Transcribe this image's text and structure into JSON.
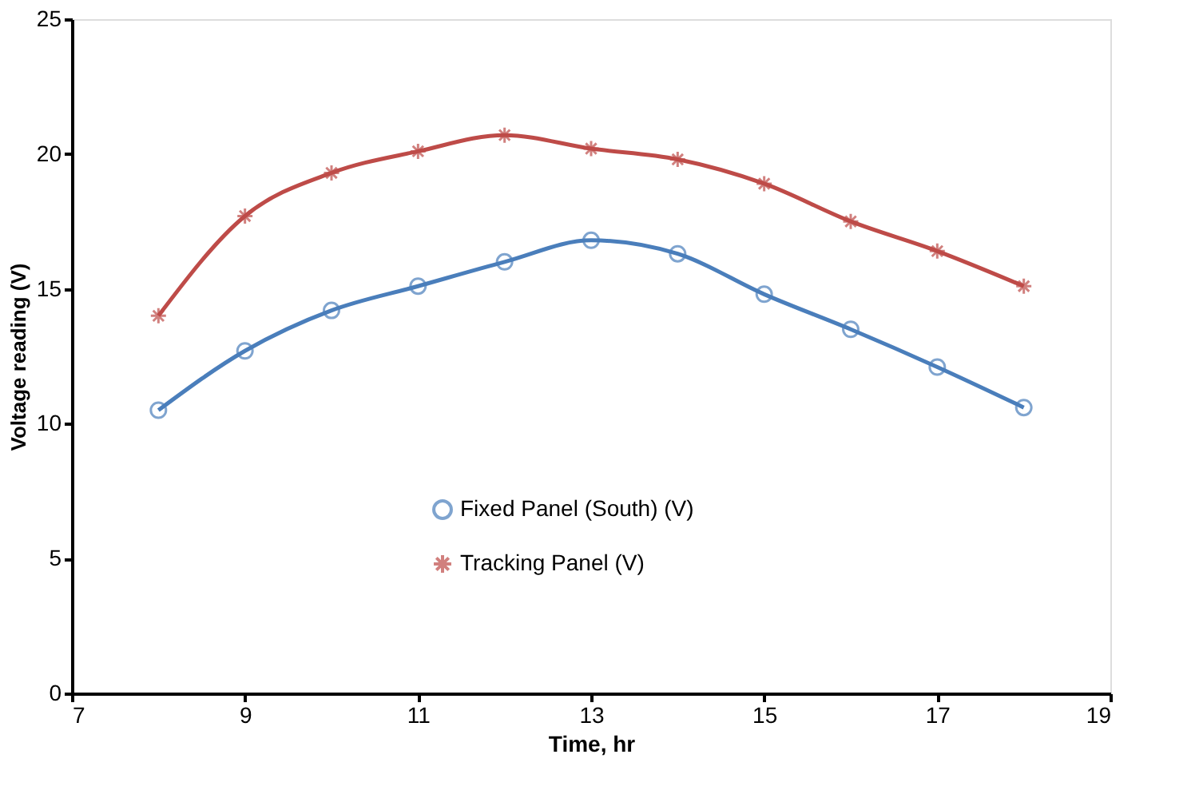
{
  "chart_data": {
    "type": "line",
    "xlabel": "Time, hr",
    "ylabel": "Voltage reading (V)",
    "x": [
      8,
      9,
      10,
      11,
      12,
      13,
      14,
      15,
      16,
      17,
      18
    ],
    "series": [
      {
        "name": "Fixed Panel (South) (V)",
        "color": "#4a7ebb",
        "marker": "circle",
        "values": [
          10.5,
          12.7,
          14.2,
          15.1,
          16.0,
          16.8,
          16.3,
          14.8,
          13.5,
          12.1,
          10.6
        ]
      },
      {
        "name": "Tracking Panel (V)",
        "color": "#be4b48",
        "marker": "cross",
        "values": [
          14.0,
          17.7,
          19.3,
          20.1,
          20.7,
          20.2,
          19.8,
          18.9,
          17.5,
          16.4,
          15.1
        ]
      }
    ],
    "xlim": [
      7,
      19
    ],
    "xticks": [
      7,
      9,
      11,
      13,
      15,
      17,
      19
    ],
    "ylim": [
      0,
      25
    ],
    "yticks": [
      0,
      5,
      10,
      15,
      20,
      25
    ],
    "grid": false,
    "legend": "bottom",
    "line_style": "solid"
  }
}
